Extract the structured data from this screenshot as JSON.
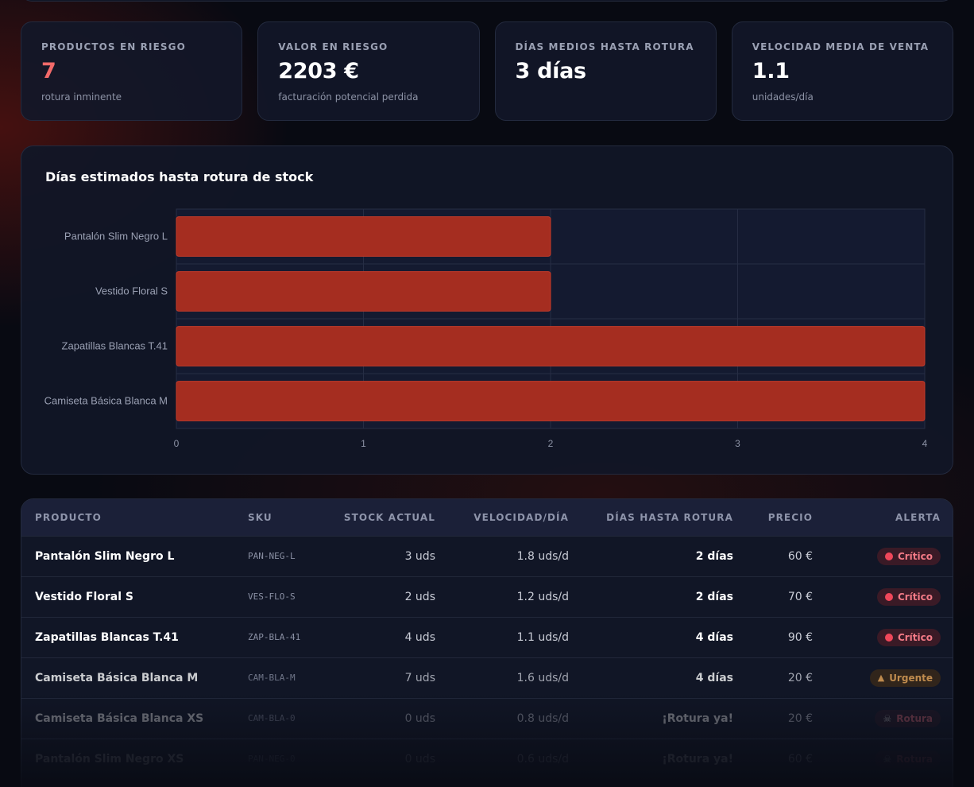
{
  "kpis": [
    {
      "label": "PRODUCTOS EN RIESGO",
      "value": "7",
      "sub": "rotura inminente"
    },
    {
      "label": "VALOR EN RIESGO",
      "value": "2203 €",
      "sub": "facturación potencial perdida"
    },
    {
      "label": "DÍAS MEDIOS HASTA ROTURA",
      "value": "3 días",
      "sub": ""
    },
    {
      "label": "VELOCIDAD MEDIA DE VENTA",
      "value": "1.1",
      "sub": "unidades/día"
    }
  ],
  "chart_data": {
    "type": "bar",
    "orientation": "horizontal",
    "title": "Días estimados hasta rotura de stock",
    "categories": [
      "Pantalón Slim Negro L",
      "Vestido Floral S",
      "Zapatillas Blancas T.41",
      "Camiseta Básica Blanca M"
    ],
    "values": [
      2,
      2,
      4,
      4
    ],
    "xlim": [
      0,
      4
    ],
    "xticks": [
      "0",
      "1",
      "2",
      "3",
      "4"
    ],
    "grid": true,
    "bar_color": "#a52d20"
  },
  "table": {
    "headers": [
      "PRODUCTO",
      "SKU",
      "STOCK ACTUAL",
      "VELOCIDAD/DÍA",
      "DÍAS HASTA ROTURA",
      "PRECIO",
      "ALERTA"
    ],
    "rows": [
      {
        "producto": "Pantalón Slim Negro L",
        "sku": "PAN-NEG-L",
        "stock": "3 uds",
        "velocidad": "1.8 uds/d",
        "dias": "2 días",
        "precio": "60 €",
        "alerta": "Crítico",
        "alerta_tipo": "critico"
      },
      {
        "producto": "Vestido Floral S",
        "sku": "VES-FLO-S",
        "stock": "2 uds",
        "velocidad": "1.2 uds/d",
        "dias": "2 días",
        "precio": "70 €",
        "alerta": "Crítico",
        "alerta_tipo": "critico"
      },
      {
        "producto": "Zapatillas Blancas T.41",
        "sku": "ZAP-BLA-41",
        "stock": "4 uds",
        "velocidad": "1.1 uds/d",
        "dias": "4 días",
        "precio": "90 €",
        "alerta": "Crítico",
        "alerta_tipo": "critico"
      },
      {
        "producto": "Camiseta Básica Blanca M",
        "sku": "CAM-BLA-M",
        "stock": "7 uds",
        "velocidad": "1.6 uds/d",
        "dias": "4 días",
        "precio": "20 €",
        "alerta": "Urgente",
        "alerta_tipo": "urgente"
      },
      {
        "producto": "Camiseta Básica Blanca XS",
        "sku": "CAM-BLA-0",
        "stock": "0 uds",
        "velocidad": "0.8 uds/d",
        "dias": "¡Rotura ya!",
        "precio": "20 €",
        "alerta": "Rotura",
        "alerta_tipo": "rotura"
      },
      {
        "producto": "Pantalón Slim Negro XS",
        "sku": "PAN-NEG-0",
        "stock": "0 uds",
        "velocidad": "0.6 uds/d",
        "dias": "¡Rotura ya!",
        "precio": "60 €",
        "alerta": "Rotura",
        "alerta_tipo": "rotura"
      }
    ]
  },
  "icons": {
    "critico": "red-dot-icon",
    "urgente": "warning-triangle-icon",
    "rotura": "skull-icon"
  }
}
